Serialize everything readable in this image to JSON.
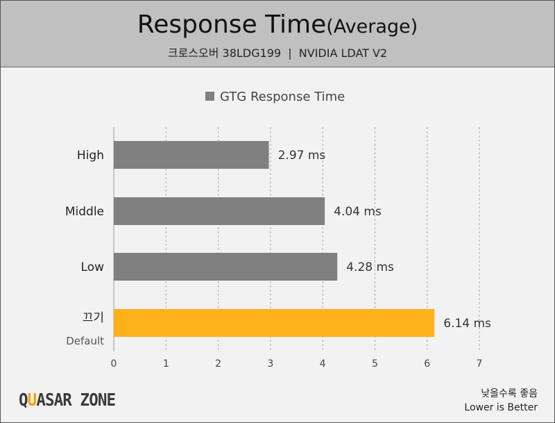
{
  "header": {
    "title": "Response Time",
    "title_suffix": "(Average)",
    "subtitle": "크로스오버 38LDG199  |  NVIDIA LDAT V2"
  },
  "chart_data": {
    "type": "bar",
    "orientation": "horizontal",
    "categories": [
      "High",
      "Middle",
      "Low",
      "끄기"
    ],
    "category_sublabels": [
      "",
      "",
      "",
      "Default"
    ],
    "series": [
      {
        "name": "GTG Response Time",
        "values": [
          2.97,
          4.04,
          4.28,
          6.14
        ]
      }
    ],
    "data_labels": [
      "2.97 ms",
      "4.04 ms",
      "4.28 ms",
      "6.14 ms"
    ],
    "xlim": [
      0,
      7
    ],
    "xticks": [
      "0",
      "1",
      "2",
      "3",
      "4",
      "5",
      "6",
      "7"
    ],
    "grid": true,
    "legend": "top-center",
    "colors": {
      "default": "#808080",
      "highlight": "#ffb11b"
    },
    "highlight_index": 3
  },
  "footer": {
    "logo": "QUASAR ZONE",
    "note_ko": "낮을수록 좋음",
    "note_en": "Lower is Better"
  }
}
